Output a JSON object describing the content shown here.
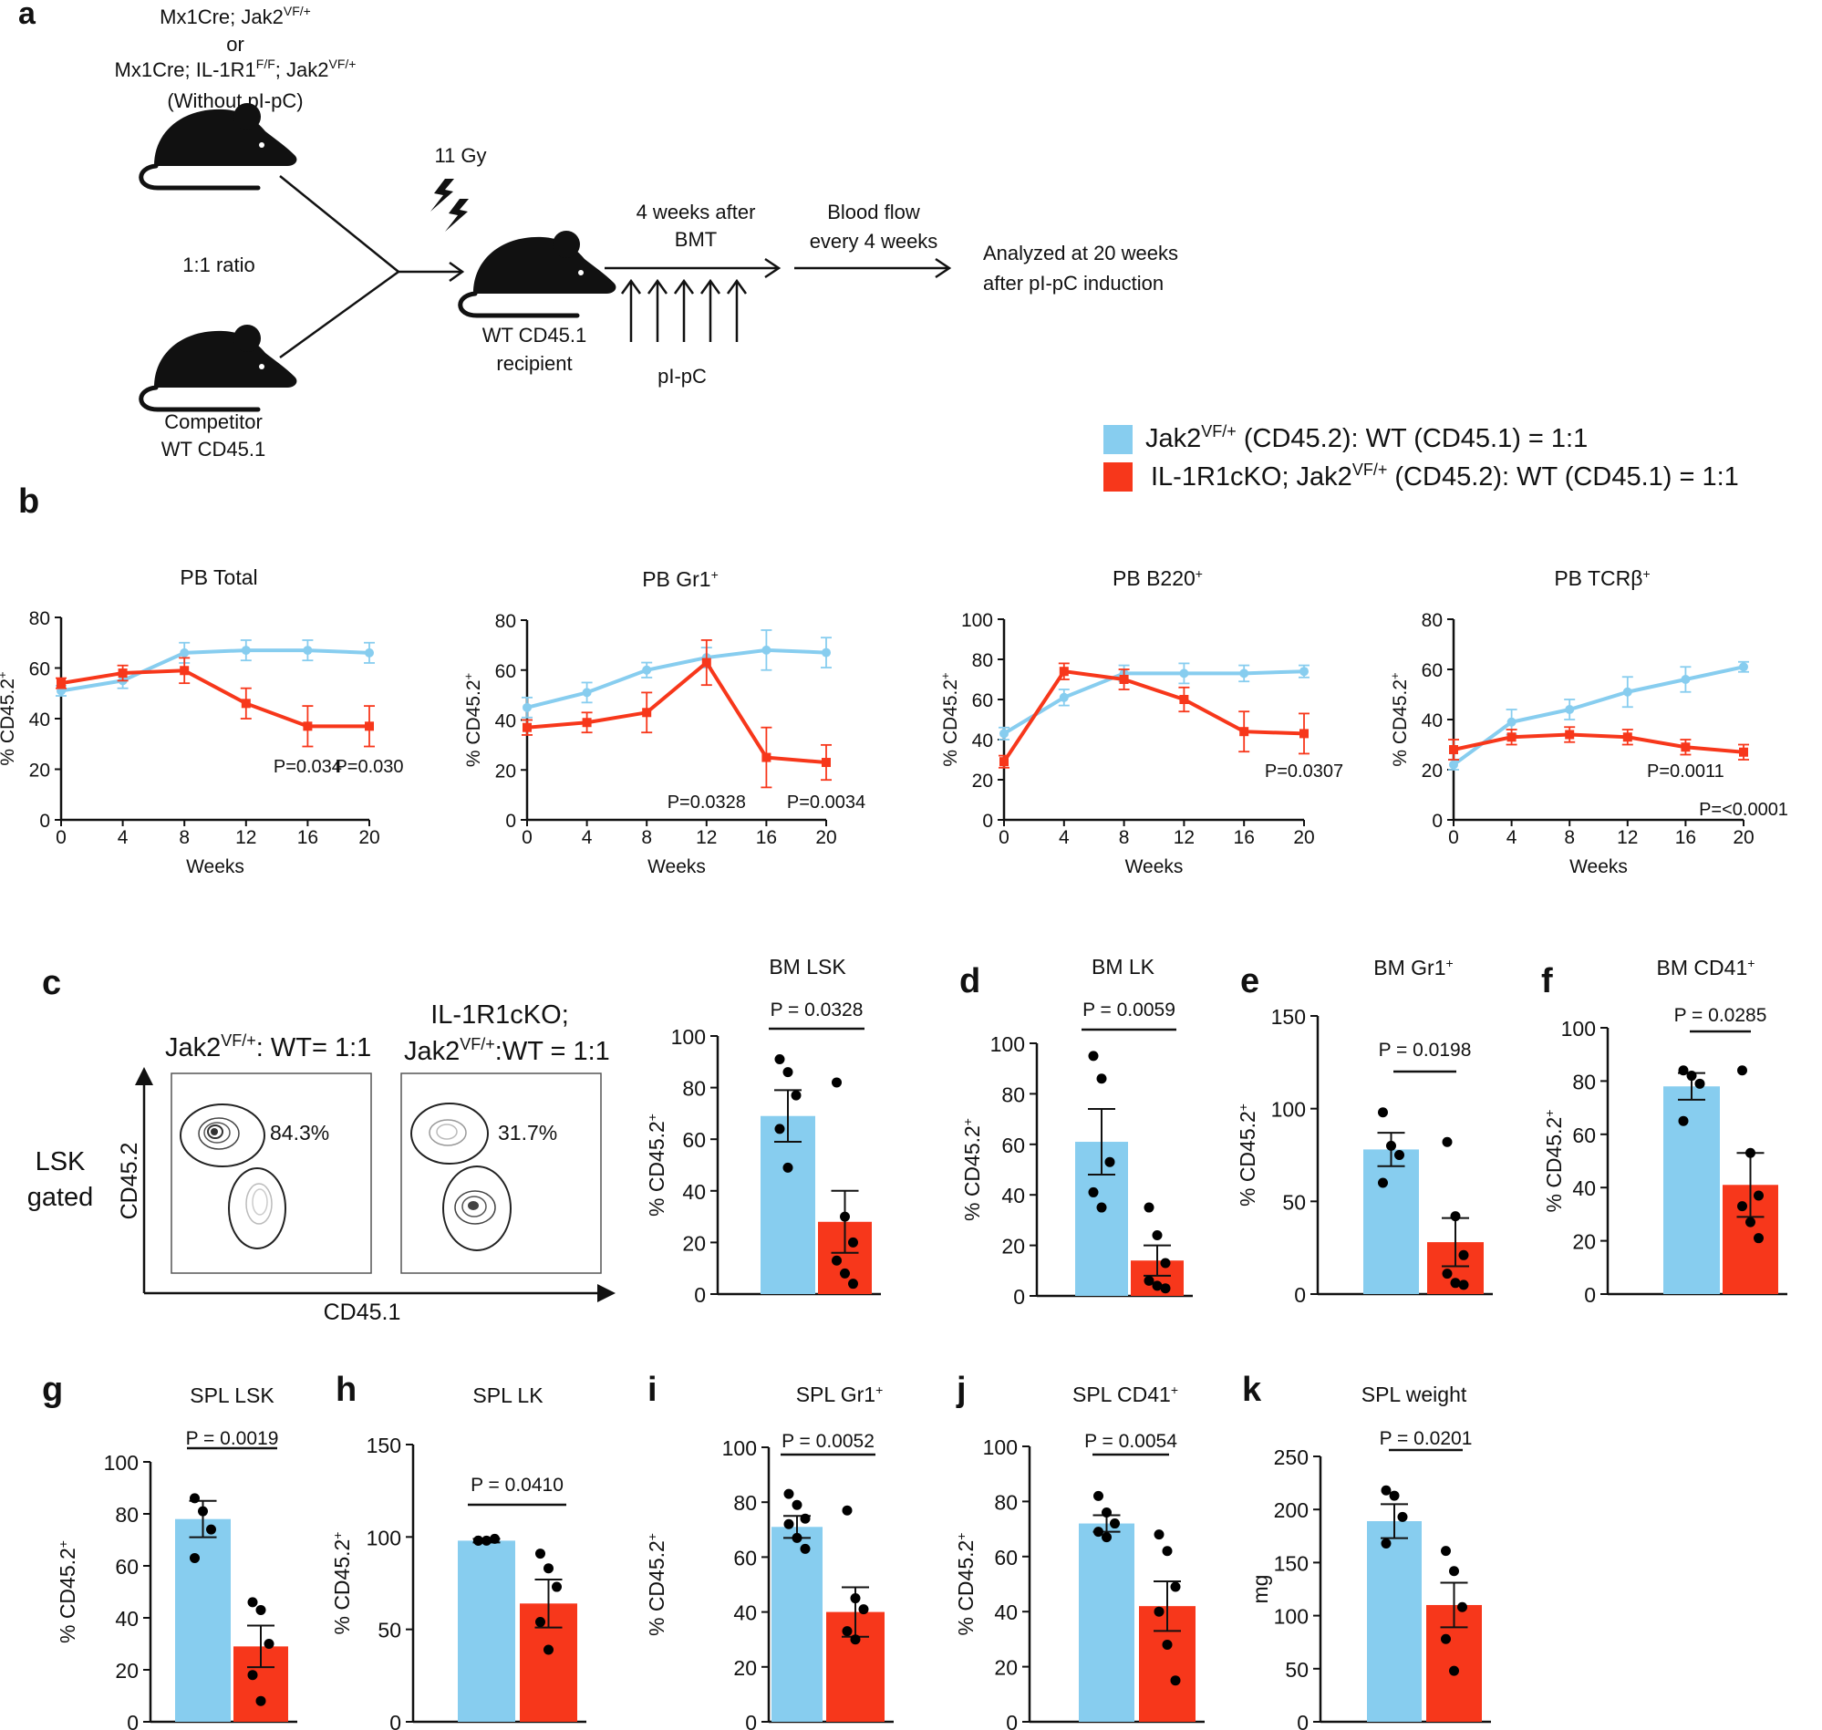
{
  "colors": {
    "wt": "#87cdef",
    "ko": "#f7371b",
    "axis": "#111111"
  },
  "icons": [
    "mouse-icon",
    "lightning-bolt-icon",
    "arrow-right-icon",
    "arrow-up-icon",
    "contour-plot-icon"
  ],
  "panel_a": {
    "letter": "a",
    "donor_line1": "Mx1Cre; Jak2",
    "donor_line1_sup": "VF/+",
    "donor_or": "or",
    "donor_line3_pre": "Mx1Cre; IL-1R1",
    "donor_line3_sup1": "F/F",
    "donor_line3_mid": "; Jak2",
    "donor_line3_sup2": "VF/+",
    "donor_line4": "(Without pI-pC)",
    "ratio": "1:1 ratio",
    "competitor_line1": "Competitor",
    "competitor_line2": "WT CD45.1",
    "irradiation": "11 Gy",
    "recipient_line1": "WT CD45.1",
    "recipient_line2": "recipient",
    "step1_line1": "4 weeks after",
    "step1_line2": "BMT",
    "injection": "pI-pC",
    "step2_line1": "Blood flow",
    "step2_line2": "every 4 weeks",
    "final_line1": "Analyzed at 20 weeks",
    "final_line2": "after pI-pC induction"
  },
  "legend": {
    "wt_pre": "Jak2",
    "wt_sup": "VF/+",
    "wt_post": " (CD45.2): WT (CD45.1) = 1:1",
    "ko_pre": "IL-1R1cKO; Jak2",
    "ko_sup": "VF/+",
    "ko_post": " (CD45.2): WT (CD45.1) = 1:1"
  },
  "panel_b": {
    "letter": "b",
    "xlabel": "Weeks",
    "ylabel": "% CD45.2",
    "ylabel_sup": "+"
  },
  "panel_c": {
    "letter": "c",
    "gate_line1": "LSK",
    "gate_line2": "gated",
    "yaxis": "CD45.2",
    "xaxis": "CD45.1",
    "plot1_pre": "Jak2",
    "plot1_sup": "VF/+",
    "plot1_post": ": WT= 1:1",
    "plot1_pct": "84.3%",
    "plot2_line1": "IL-1R1cKO;",
    "plot2_pre": "Jak2",
    "plot2_sup": "VF/+",
    "plot2_post": ":WT = 1:1",
    "plot2_pct": "31.7%"
  },
  "chart_data": [
    {
      "id": "b1",
      "type": "line",
      "title": "PB Total",
      "title_sup": "",
      "xlabel": "Weeks",
      "ylabel": "% CD45.2+",
      "x": [
        0,
        4,
        8,
        12,
        16,
        20
      ],
      "xlim": [
        0,
        20
      ],
      "ylim": [
        0,
        80
      ],
      "yticks": [
        0,
        20,
        40,
        60,
        80
      ],
      "series": [
        {
          "key": "wt",
          "values": [
            51,
            55,
            66,
            67,
            67,
            66
          ],
          "errors": [
            2,
            3,
            4,
            4,
            4,
            4
          ]
        },
        {
          "key": "ko",
          "values": [
            54,
            58,
            59,
            46,
            37,
            37
          ],
          "errors": [
            2,
            3,
            5,
            6,
            8,
            8
          ]
        }
      ],
      "annotations": [
        {
          "text": "P=0.034",
          "x": 16
        },
        {
          "text": "P=0.030",
          "x": 20
        }
      ]
    },
    {
      "id": "b2",
      "type": "line",
      "title": "PB Gr1",
      "title_sup": "+",
      "xlabel": "Weeks",
      "ylabel": "% CD45.2+",
      "x": [
        0,
        4,
        8,
        12,
        16,
        20
      ],
      "xlim": [
        0,
        20
      ],
      "ylim": [
        0,
        80
      ],
      "yticks": [
        0,
        20,
        40,
        60,
        80
      ],
      "series": [
        {
          "key": "wt",
          "values": [
            45,
            51,
            60,
            65,
            68,
            67
          ],
          "errors": [
            4,
            4,
            3,
            4,
            8,
            6
          ]
        },
        {
          "key": "ko",
          "values": [
            37,
            39,
            43,
            63,
            25,
            23
          ],
          "errors": [
            3,
            4,
            8,
            9,
            12,
            7
          ]
        }
      ],
      "annotations": [
        {
          "text": "P=0.0328",
          "x": 12
        },
        {
          "text": "P=0.0034",
          "x": 20
        }
      ]
    },
    {
      "id": "b3",
      "type": "line",
      "title": "PB B220",
      "title_sup": "+",
      "xlabel": "Weeks",
      "ylabel": "% CD45.2+",
      "x": [
        0,
        4,
        8,
        12,
        16,
        20
      ],
      "xlim": [
        0,
        20
      ],
      "ylim": [
        0,
        100
      ],
      "yticks": [
        0,
        20,
        40,
        60,
        80,
        100
      ],
      "series": [
        {
          "key": "wt",
          "values": [
            43,
            61,
            73,
            73,
            73,
            74
          ],
          "errors": [
            3,
            4,
            4,
            5,
            4,
            3
          ]
        },
        {
          "key": "ko",
          "values": [
            29,
            74,
            70,
            60,
            44,
            43
          ],
          "errors": [
            3,
            4,
            5,
            6,
            10,
            10
          ]
        }
      ],
      "annotations": [
        {
          "text": "P=0.0307",
          "x": 20
        }
      ]
    },
    {
      "id": "b4",
      "type": "line",
      "title": "PB TCRβ",
      "title_sup": "+",
      "xlabel": "Weeks",
      "ylabel": "% CD45.2+",
      "x": [
        0,
        4,
        8,
        12,
        16,
        20
      ],
      "xlim": [
        0,
        20
      ],
      "ylim": [
        0,
        80
      ],
      "yticks": [
        0,
        20,
        40,
        60,
        80
      ],
      "series": [
        {
          "key": "wt",
          "values": [
            22,
            39,
            44,
            51,
            56,
            61
          ],
          "errors": [
            2,
            5,
            4,
            6,
            5,
            2
          ]
        },
        {
          "key": "ko",
          "values": [
            28,
            33,
            34,
            33,
            29,
            27
          ],
          "errors": [
            4,
            3,
            3,
            3,
            3,
            3
          ]
        }
      ],
      "annotations": [
        {
          "text": "P=0.0011",
          "x": 16
        },
        {
          "text": "P=<0.0001",
          "x": 20
        }
      ]
    },
    {
      "id": "c_bar",
      "type": "bar",
      "letter": "",
      "title": "BM LSK",
      "title_sup": "",
      "ylabel": "% CD45.2",
      "ylabel_sup": "+",
      "ylim": [
        0,
        100
      ],
      "yticks": [
        0,
        20,
        40,
        60,
        80,
        100
      ],
      "p_value": "P = 0.0328",
      "bars": [
        {
          "key": "wt",
          "mean": 69,
          "sem": 10,
          "points": [
            91,
            86,
            77,
            64,
            49
          ]
        },
        {
          "key": "ko",
          "mean": 28,
          "sem": 12,
          "points": [
            82,
            30,
            20,
            13,
            8,
            4
          ]
        }
      ]
    },
    {
      "id": "d",
      "type": "bar",
      "letter": "d",
      "title": "BM LK",
      "title_sup": "",
      "ylabel": "% CD45.2",
      "ylabel_sup": "+",
      "ylim": [
        0,
        100
      ],
      "yticks": [
        0,
        20,
        40,
        60,
        80,
        100
      ],
      "p_value": "P = 0.0059",
      "bars": [
        {
          "key": "wt",
          "mean": 61,
          "sem": 13,
          "points": [
            95,
            86,
            53,
            41,
            35
          ]
        },
        {
          "key": "ko",
          "mean": 14,
          "sem": 6,
          "points": [
            35,
            24,
            13,
            6,
            4,
            3
          ]
        }
      ]
    },
    {
      "id": "e",
      "type": "bar",
      "letter": "e",
      "title": "BM Gr1",
      "title_sup": "+",
      "ylabel": "% CD45.2",
      "ylabel_sup": "+",
      "ylim": [
        0,
        150
      ],
      "yticks": [
        0,
        50,
        100,
        150
      ],
      "p_value": "P = 0.0198",
      "bars": [
        {
          "key": "wt",
          "mean": 78,
          "sem": 9,
          "points": [
            98,
            80,
            75,
            60
          ]
        },
        {
          "key": "ko",
          "mean": 28,
          "sem": 13,
          "points": [
            82,
            42,
            21,
            11,
            6,
            5
          ]
        }
      ]
    },
    {
      "id": "f",
      "type": "bar",
      "letter": "f",
      "title": "BM CD41",
      "title_sup": "+",
      "ylabel": "% CD45.2",
      "ylabel_sup": "+",
      "ylim": [
        0,
        100
      ],
      "yticks": [
        0,
        20,
        40,
        60,
        80,
        100
      ],
      "p_value": "P = 0.0285",
      "bars": [
        {
          "key": "wt",
          "mean": 78,
          "sem": 5,
          "points": [
            84,
            82,
            79,
            65
          ]
        },
        {
          "key": "ko",
          "mean": 41,
          "sem": 12,
          "points": [
            84,
            53,
            37,
            33,
            27,
            21
          ]
        }
      ]
    },
    {
      "id": "g",
      "type": "bar",
      "letter": "g",
      "title": "SPL LSK",
      "title_sup": "",
      "ylabel": "% CD45.2",
      "ylabel_sup": "+",
      "ylim": [
        0,
        100
      ],
      "yticks": [
        0,
        20,
        40,
        60,
        80,
        100
      ],
      "p_value": "P = 0.0019",
      "bars": [
        {
          "key": "wt",
          "mean": 78,
          "sem": 7,
          "points": [
            86,
            81,
            74,
            63
          ]
        },
        {
          "key": "ko",
          "mean": 29,
          "sem": 8,
          "points": [
            46,
            43,
            30,
            18,
            8
          ]
        }
      ]
    },
    {
      "id": "h",
      "type": "bar",
      "letter": "h",
      "title": "SPL LK",
      "title_sup": "",
      "ylabel": "% CD45.2",
      "ylabel_sup": "+",
      "ylim": [
        0,
        150
      ],
      "yticks": [
        0,
        50,
        100,
        150
      ],
      "p_value": "P = 0.0410",
      "bars": [
        {
          "key": "wt",
          "mean": 98,
          "sem": 1,
          "points": [
            98,
            98,
            99,
            98
          ]
        },
        {
          "key": "ko",
          "mean": 64,
          "sem": 13,
          "points": [
            91,
            83,
            73,
            54,
            39
          ]
        }
      ]
    },
    {
      "id": "i",
      "type": "bar",
      "letter": "i",
      "title": "SPL Gr1",
      "title_sup": "+",
      "ylabel": "% CD45.2",
      "ylabel_sup": "+",
      "ylim": [
        0,
        100
      ],
      "yticks": [
        0,
        20,
        40,
        60,
        80,
        100
      ],
      "p_value": "P = 0.0052",
      "bars": [
        {
          "key": "wt",
          "mean": 71,
          "sem": 4,
          "points": [
            83,
            79,
            74,
            72,
            67,
            63
          ]
        },
        {
          "key": "ko",
          "mean": 40,
          "sem": 9,
          "points": [
            77,
            45,
            41,
            33,
            30
          ]
        }
      ]
    },
    {
      "id": "j",
      "type": "bar",
      "letter": "j",
      "title": "SPL CD41",
      "title_sup": "+",
      "ylabel": "% CD45.2",
      "ylabel_sup": "+",
      "ylim": [
        0,
        100
      ],
      "yticks": [
        0,
        20,
        40,
        60,
        80,
        100
      ],
      "p_value": "P = 0.0054",
      "bars": [
        {
          "key": "wt",
          "mean": 72,
          "sem": 3,
          "points": [
            82,
            76,
            72,
            69,
            67
          ]
        },
        {
          "key": "ko",
          "mean": 42,
          "sem": 9,
          "points": [
            68,
            62,
            49,
            40,
            28,
            15
          ]
        }
      ]
    },
    {
      "id": "k",
      "type": "bar",
      "letter": "k",
      "title": "SPL weight",
      "title_sup": "",
      "ylabel": "mg",
      "ylabel_sup": "",
      "ylim": [
        0,
        250
      ],
      "yticks": [
        0,
        50,
        100,
        150,
        200,
        250
      ],
      "p_value": "P = 0.0201",
      "bars": [
        {
          "key": "wt",
          "mean": 189,
          "sem": 16,
          "points": [
            218,
            213,
            193,
            168
          ]
        },
        {
          "key": "ko",
          "mean": 110,
          "sem": 21,
          "points": [
            161,
            142,
            108,
            78,
            48
          ]
        }
      ]
    }
  ]
}
